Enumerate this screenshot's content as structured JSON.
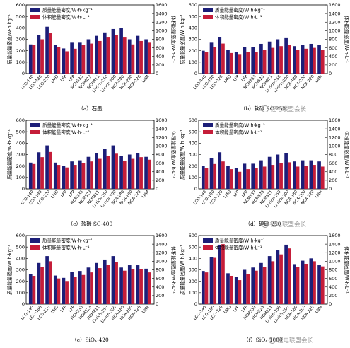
{
  "legend": {
    "gravimetric": "质量能量密度/W·h·kg⁻¹",
    "volumetric": "体积能量密度/W·h·L⁻¹"
  },
  "axis_labels": {
    "left": "质量能量密度/W·h·kg⁻¹",
    "right": "体积能量密度/W·h·L⁻¹"
  },
  "colors": {
    "gravimetric": "#1c1e78",
    "volumetric": "#c51d39"
  },
  "watermark": "锂电联盟会长",
  "chart_data": [
    {
      "type": "bar",
      "caption": "（a）石墨",
      "categories": [
        "LCO-140",
        "LCO-180",
        "LCO-220",
        "LMO",
        "LFP",
        "LFP",
        "NCM333",
        "NCM523",
        "NCM811",
        "Li-rich-250",
        "Li-rich-300",
        "NCA-180",
        "NCA-200",
        "NCA-220",
        "LNM"
      ],
      "ylim_left": [
        0,
        600
      ],
      "ylim_right": [
        0,
        1600
      ],
      "yticks_left": [
        0,
        100,
        200,
        300,
        400,
        500,
        600
      ],
      "yticks_right": [
        0,
        200,
        400,
        600,
        800,
        1000,
        1200,
        1400,
        1600
      ],
      "series": [
        {
          "name": "质量能量密度/W·h·kg⁻¹",
          "axis": "left",
          "values": [
            255,
            340,
            410,
            250,
            220,
            270,
            270,
            300,
            330,
            360,
            390,
            400,
            300,
            330,
            300
          ]
        },
        {
          "name": "体积能量密度/W·h·L⁻¹",
          "axis": "right",
          "values": [
            660,
            800,
            940,
            620,
            520,
            580,
            660,
            700,
            760,
            840,
            900,
            840,
            680,
            760,
            720
          ]
        }
      ]
    },
    {
      "type": "bar",
      "caption": "（b）软碳 SC-250",
      "categories": [
        "LCO-140",
        "LCO-180",
        "LCO-220",
        "LMO",
        "LFP",
        "LFP",
        "NCM333",
        "NCM523",
        "NCM811",
        "Li-rich-250",
        "Li-rich-300",
        "NCA-180",
        "NCA-200",
        "NCA-220",
        "LNM"
      ],
      "ylim_left": [
        0,
        600
      ],
      "ylim_right": [
        0,
        1600
      ],
      "yticks_left": [
        0,
        100,
        200,
        300,
        400,
        500,
        600
      ],
      "yticks_right": [
        0,
        200,
        400,
        600,
        800,
        1000,
        1200,
        1400,
        1600
      ],
      "series": [
        {
          "name": "质量能量密度/W·h·kg⁻¹",
          "axis": "left",
          "values": [
            200,
            270,
            320,
            210,
            190,
            230,
            230,
            260,
            280,
            300,
            310,
            240,
            250,
            260,
            250
          ]
        },
        {
          "name": "体积能量密度/W·h·L⁻¹",
          "axis": "right",
          "values": [
            500,
            620,
            700,
            480,
            440,
            500,
            500,
            560,
            600,
            640,
            660,
            560,
            580,
            600,
            560
          ]
        }
      ]
    },
    {
      "type": "bar",
      "caption": "（c）软碳 SC-400",
      "categories": [
        "LCO-140",
        "LCO-180",
        "LCO-220",
        "LMO",
        "LFP",
        "LFP",
        "NCM333",
        "NCM523",
        "NCM811",
        "Li-rich-250",
        "Li-rich-300",
        "NCA-180",
        "NCA-200",
        "NCA-220",
        "LNM"
      ],
      "ylim_left": [
        0,
        600
      ],
      "ylim_right": [
        0,
        1600
      ],
      "yticks_left": [
        0,
        100,
        200,
        300,
        400,
        500,
        600
      ],
      "yticks_right": [
        0,
        200,
        400,
        600,
        800,
        1000,
        1200,
        1400,
        1600
      ],
      "series": [
        {
          "name": "质量能量密度/W·h·kg⁻¹",
          "axis": "left",
          "values": [
            230,
            320,
            380,
            230,
            200,
            240,
            250,
            280,
            310,
            350,
            380,
            290,
            300,
            310,
            280
          ]
        },
        {
          "name": "体积能量密度/W·h·L⁻¹",
          "axis": "right",
          "values": [
            580,
            740,
            860,
            560,
            500,
            560,
            600,
            640,
            700,
            760,
            820,
            660,
            700,
            740,
            680
          ]
        }
      ]
    },
    {
      "type": "bar",
      "caption": "（d）硬碳-250",
      "categories": [
        "LCO-140",
        "LCO-180",
        "LCO-220",
        "LMO",
        "LFP",
        "LFP",
        "NCM333",
        "NCM523",
        "NCM811",
        "Li-rich-250",
        "Li-rich-300",
        "NCA-180",
        "NCA-200",
        "NCA-220",
        "LNM"
      ],
      "ylim_left": [
        0,
        600
      ],
      "ylim_right": [
        0,
        1600
      ],
      "yticks_left": [
        0,
        100,
        200,
        300,
        400,
        500,
        600
      ],
      "yticks_right": [
        0,
        200,
        400,
        600,
        800,
        1000,
        1200,
        1400,
        1600
      ],
      "series": [
        {
          "name": "质量能量密度/W·h·kg⁻¹",
          "axis": "left",
          "values": [
            200,
            270,
            320,
            200,
            180,
            220,
            220,
            250,
            280,
            300,
            310,
            240,
            250,
            250,
            240
          ]
        },
        {
          "name": "体积能量密度/W·h·L⁻¹",
          "axis": "right",
          "values": [
            480,
            580,
            640,
            460,
            400,
            460,
            480,
            520,
            560,
            600,
            620,
            520,
            540,
            560,
            520
          ]
        }
      ]
    },
    {
      "type": "bar",
      "caption": "（e）SiOₓ-420",
      "categories": [
        "LCO-140",
        "LCO-180",
        "LCO-220",
        "LMO",
        "LFP",
        "LFP",
        "NCM333",
        "NCM523",
        "NCM811",
        "Li-rich-250",
        "Li-rich-300",
        "NCA-180",
        "NCA-200",
        "NCA-220",
        "LNM"
      ],
      "ylim_left": [
        0,
        600
      ],
      "ylim_right": [
        0,
        1600
      ],
      "yticks_left": [
        0,
        100,
        200,
        300,
        400,
        500,
        600
      ],
      "yticks_right": [
        0,
        200,
        400,
        600,
        800,
        1000,
        1200,
        1400,
        1600
      ],
      "series": [
        {
          "name": "质量能量密度/W·h·kg⁻¹",
          "axis": "left",
          "values": [
            260,
            360,
            420,
            250,
            230,
            280,
            290,
            320,
            360,
            390,
            420,
            320,
            340,
            340,
            310
          ]
        },
        {
          "name": "体积能量密度/W·h·L⁻¹",
          "axis": "right",
          "values": [
            660,
            860,
            1000,
            600,
            540,
            640,
            680,
            740,
            840,
            920,
            980,
            780,
            820,
            820,
            740
          ]
        }
      ]
    },
    {
      "type": "bar",
      "caption": "（f）SiOₓ-1000",
      "categories": [
        "LCO-140",
        "LCO-180",
        "LCO-220",
        "LMO",
        "LFP",
        "LFP",
        "NCM333",
        "NCM523",
        "NCM811",
        "Li-rich-250",
        "Li-rich-300",
        "NCA-180",
        "NCA-200",
        "NCA-220",
        "LNM"
      ],
      "ylim_left": [
        0,
        600
      ],
      "ylim_right": [
        0,
        1600
      ],
      "yticks_left": [
        0,
        100,
        200,
        300,
        400,
        500,
        600
      ],
      "yticks_right": [
        0,
        200,
        400,
        600,
        800,
        1000,
        1200,
        1400,
        1600
      ],
      "series": [
        {
          "name": "质量能量密度/W·h·kg⁻¹",
          "axis": "left",
          "values": [
            290,
            410,
            520,
            270,
            240,
            300,
            320,
            360,
            420,
            470,
            520,
            350,
            380,
            400,
            340
          ]
        },
        {
          "name": "体积能量密度/W·h·L⁻¹",
          "axis": "right",
          "values": [
            740,
            1080,
            1400,
            660,
            560,
            700,
            780,
            860,
            1000,
            1160,
            1300,
            860,
            940,
            1000,
            880
          ]
        }
      ]
    }
  ]
}
